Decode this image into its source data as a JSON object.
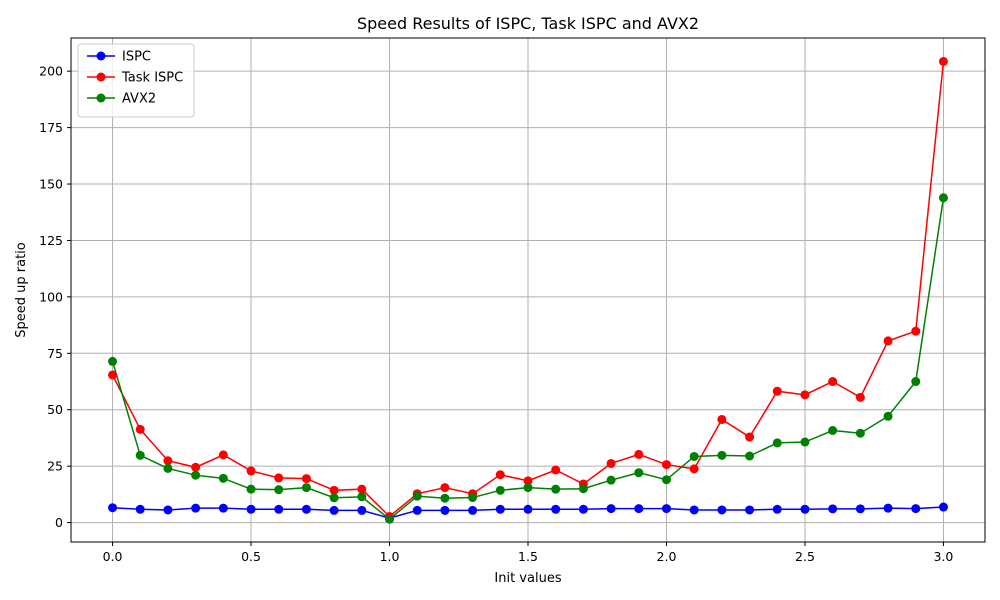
{
  "chart_data": {
    "type": "line",
    "title": "Speed Results of ISPC, Task ISPC and AVX2",
    "xlabel": "Init values",
    "ylabel": "Speed up ratio",
    "xlim": [
      -0.15,
      3.15
    ],
    "ylim": [
      -8.6,
      214.7
    ],
    "x_ticks": [
      0.0,
      0.5,
      1.0,
      1.5,
      2.0,
      2.5,
      3.0
    ],
    "x_tick_labels": [
      "0.0",
      "0.5",
      "1.0",
      "1.5",
      "2.0",
      "2.5",
      "3.0"
    ],
    "y_ticks": [
      0,
      25,
      50,
      75,
      100,
      125,
      150,
      175,
      200
    ],
    "y_tick_labels": [
      "0",
      "25",
      "50",
      "75",
      "100",
      "125",
      "150",
      "175",
      "200"
    ],
    "grid": true,
    "legend_position": "top-left",
    "x": [
      0.0,
      0.1,
      0.2,
      0.3,
      0.4,
      0.5,
      0.6,
      0.7,
      0.8,
      0.9,
      1.0,
      1.1,
      1.2,
      1.3,
      1.4,
      1.5,
      1.6,
      1.7,
      1.8,
      1.9,
      2.0,
      2.1,
      2.2,
      2.3,
      2.4,
      2.5,
      2.6,
      2.7,
      2.8,
      2.9,
      3.0
    ],
    "series": [
      {
        "name": "ISPC",
        "color": "#0000ff",
        "values": [
          6.6,
          5.9,
          5.6,
          6.4,
          6.4,
          5.9,
          5.9,
          5.9,
          5.4,
          5.4,
          2.0,
          5.4,
          5.4,
          5.4,
          5.9,
          5.9,
          5.9,
          5.9,
          6.2,
          6.2,
          6.2,
          5.6,
          5.6,
          5.6,
          5.9,
          5.9,
          6.1,
          6.1,
          6.4,
          6.2,
          6.9
        ]
      },
      {
        "name": "Task ISPC",
        "color": "#ff0000",
        "values": [
          65.4,
          41.3,
          27.4,
          24.5,
          30.0,
          22.9,
          19.8,
          19.5,
          14.3,
          14.8,
          2.7,
          12.8,
          15.5,
          12.8,
          21.2,
          18.5,
          23.3,
          17.1,
          26.2,
          30.2,
          25.7,
          23.8,
          45.7,
          37.9,
          58.2,
          56.6,
          62.5,
          55.5,
          80.5,
          84.8,
          204.3
        ]
      },
      {
        "name": "AVX2",
        "color": "#008000",
        "values": [
          71.4,
          29.8,
          24.0,
          21.0,
          19.6,
          14.8,
          14.6,
          15.5,
          11.0,
          11.4,
          1.5,
          11.7,
          10.8,
          11.1,
          14.3,
          15.5,
          14.8,
          15.0,
          18.8,
          22.1,
          19.0,
          29.3,
          29.8,
          29.5,
          35.3,
          35.7,
          40.8,
          39.6,
          47.1,
          62.5,
          143.9
        ]
      }
    ]
  }
}
